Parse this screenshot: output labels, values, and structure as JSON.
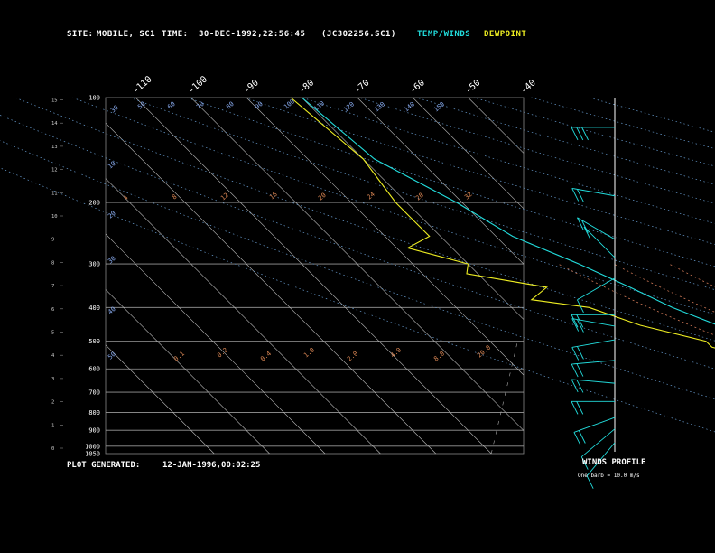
{
  "header": {
    "site_label": "SITE:",
    "site_value": "MOBILE, SC1",
    "time_label": "TIME:",
    "time_value": "30-DEC-1992,22:56:45",
    "file_id": "(JC302256.SC1)",
    "temp_legend": "TEMP/WINDS",
    "dew_legend": "DEWPOINT",
    "temp_color": "#22dddd",
    "dew_color": "#eeee22"
  },
  "footer": {
    "plot_label": "PLOT GENERATED:",
    "plot_value": "12-JAN-1996,00:02:25",
    "winds_title": "WINDS PROFILE",
    "barb_note": "One barb = 10.0 m/s"
  },
  "chart_data": {
    "type": "line",
    "pressure_levels": [
      "100",
      "200",
      "300",
      "400",
      "500",
      "600",
      "700",
      "800",
      "900",
      "1000",
      "1050"
    ],
    "height_ticks": [
      "0",
      "1",
      "2",
      "3",
      "4",
      "5",
      "6",
      "7",
      "8",
      "9",
      "10",
      "11",
      "12",
      "13",
      "14",
      "15"
    ],
    "top_temp_ticks": [
      "-110",
      "-100",
      "-90",
      "-80",
      "-70",
      "-60",
      "-50",
      "-40"
    ],
    "right_temp_ticks": [
      "-30",
      "-20",
      "-10",
      "0",
      "10",
      "20",
      "30"
    ],
    "dry_adiabat_labels": [
      "30",
      "50",
      "60",
      "70",
      "80",
      "90",
      "100",
      "110",
      "120",
      "130",
      "140",
      "150"
    ],
    "mixing_ratio_labels_upper": [
      "4",
      "8",
      "12",
      "16",
      "20",
      "24",
      "28",
      "32"
    ],
    "mixing_ratio_labels_lower": [
      "0.1",
      "0.2",
      "0.4",
      "1.0",
      "2.0",
      "4.0",
      "8.0",
      "20.0"
    ],
    "left_adiabat_labels": [
      "10",
      "20",
      "30",
      "40",
      "50"
    ],
    "temperature": {
      "name": "TEMP/WINDS",
      "pressure": [
        100,
        150,
        200,
        250,
        300,
        350,
        400,
        450,
        500,
        550,
        600,
        650,
        700,
        750,
        800,
        850,
        900,
        950,
        1000
      ],
      "value": [
        -80,
        -78,
        -71,
        -67,
        -60,
        -55,
        -51,
        -46,
        -41,
        -38,
        -35,
        -32,
        -28,
        -25,
        -20,
        -16,
        -12,
        -8,
        -4
      ]
    },
    "dewpoint": {
      "name": "DEWPOINT",
      "pressure": [
        100,
        150,
        200,
        220,
        250,
        270,
        300,
        320,
        350,
        380,
        400,
        450,
        500,
        520,
        550,
        580,
        600,
        650,
        700,
        730,
        760,
        800,
        830,
        860,
        900,
        950,
        980,
        1000
      ],
      "value": [
        -82,
        -80,
        -82,
        -82,
        -82,
        -88,
        -80,
        -82,
        -70,
        -75,
        -66,
        -60,
        -51,
        -51,
        -46,
        -50,
        -45,
        -46,
        -38,
        -42,
        -38,
        -40,
        -32,
        -40,
        -23,
        -50,
        -30,
        -15
      ]
    },
    "winds": [
      {
        "height_km": 14.2,
        "dir_deg": 270,
        "spd_ms": 25
      },
      {
        "height_km": 11.2,
        "dir_deg": 280,
        "spd_ms": 22
      },
      {
        "height_km": 9.3,
        "dir_deg": 300,
        "spd_ms": 15
      },
      {
        "height_km": 8.5,
        "dir_deg": 315,
        "spd_ms": 8
      },
      {
        "height_km": 7.6,
        "dir_deg": 240,
        "spd_ms": 10
      },
      {
        "height_km": 6.0,
        "dir_deg": 270,
        "spd_ms": 18
      },
      {
        "height_km": 5.5,
        "dir_deg": 280,
        "spd_ms": 20
      },
      {
        "height_km": 4.9,
        "dir_deg": 260,
        "spd_ms": 15
      },
      {
        "height_km": 4.0,
        "dir_deg": 265,
        "spd_ms": 20
      },
      {
        "height_km": 3.0,
        "dir_deg": 275,
        "spd_ms": 18
      },
      {
        "height_km": 2.2,
        "dir_deg": 270,
        "spd_ms": 20
      },
      {
        "height_km": 1.5,
        "dir_deg": 250,
        "spd_ms": 15
      },
      {
        "height_km": 1.0,
        "dir_deg": 230,
        "spd_ms": 10
      },
      {
        "height_km": 0.4,
        "dir_deg": 220,
        "spd_ms": 12
      }
    ]
  }
}
